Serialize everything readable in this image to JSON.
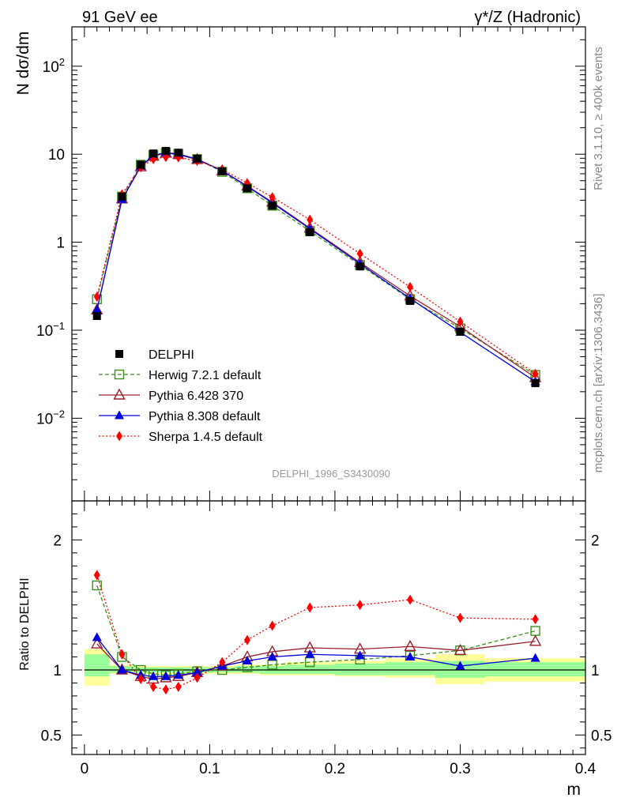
{
  "header": {
    "left_title": "91 GeV ee",
    "right_title": "γ*/Z (Hadronic)"
  },
  "side_labels": {
    "rivet": "Rivet 3.1.10, ≥ 400k events",
    "mcplots": "mcplots.cern.ch [arXiv:1306.3436]"
  },
  "analysis_id": "DELPHI_1996_S3430090",
  "colors": {
    "data": "#000000",
    "herwig": "#3a8f1a",
    "pythia6": "#9a1f2b",
    "pythia8": "#0000dd",
    "sherpa": "#ff0000",
    "band_inner": "#99ff99",
    "band_outer": "#ffff99"
  },
  "chart_data": [
    {
      "type": "line",
      "panel": "main",
      "ylabel": "N dσ/dm",
      "yscale": "log",
      "ylim": [
        0.00115,
        280
      ],
      "xlim": [
        -0.01,
        0.4
      ],
      "y_ticks": [
        {
          "value": 100,
          "base": "10",
          "exp": "2"
        },
        {
          "value": 10,
          "label": "10"
        },
        {
          "value": 1,
          "label": "1"
        },
        {
          "value": 0.1,
          "base": "10",
          "exp": "−1"
        },
        {
          "value": 0.01,
          "base": "10",
          "exp": "−2"
        }
      ],
      "x": [
        0.01,
        0.03,
        0.045,
        0.055,
        0.065,
        0.075,
        0.09,
        0.11,
        0.13,
        0.15,
        0.18,
        0.22,
        0.26,
        0.3,
        0.36
      ],
      "legend_position": "lower-left",
      "series": [
        {
          "name": "DELPHI",
          "key": "data",
          "values": [
            0.145,
            3.3,
            7.6,
            10.2,
            10.9,
            10.4,
            8.9,
            6.4,
            4.1,
            2.6,
            1.3,
            0.53,
            0.215,
            0.096,
            0.025
          ]
        },
        {
          "name": "Herwig 7.2.1 default",
          "key": "herwig",
          "values": [
            0.225,
            3.3,
            7.6,
            9.8,
            10.4,
            10.1,
            8.8,
            6.3,
            4.1,
            2.6,
            1.34,
            0.55,
            0.225,
            0.105,
            0.031
          ]
        },
        {
          "name": "Pythia 6.428 370",
          "key": "pythia6",
          "values": [
            0.17,
            3.1,
            7.2,
            9.5,
            10.3,
            9.9,
            8.7,
            6.5,
            4.35,
            2.85,
            1.45,
            0.59,
            0.245,
            0.11,
            0.029
          ]
        },
        {
          "name": "Pythia 8.308 default",
          "key": "pythia8",
          "values": [
            0.17,
            3.05,
            7.3,
            9.7,
            10.4,
            10.0,
            8.8,
            6.5,
            4.3,
            2.8,
            1.42,
            0.57,
            0.23,
            0.095,
            0.026
          ]
        },
        {
          "name": "Sherpa 1.4.5 default",
          "key": "sherpa",
          "values": [
            0.24,
            3.5,
            7.1,
            8.8,
            9.3,
            9.2,
            8.4,
            6.7,
            4.7,
            3.25,
            1.8,
            0.74,
            0.31,
            0.125,
            0.032
          ]
        }
      ]
    },
    {
      "type": "line",
      "panel": "ratio",
      "ylabel": "Ratio to DELPHI",
      "xlabel": "m",
      "ylim": [
        0.35,
        2.3
      ],
      "xlim": [
        -0.01,
        0.4
      ],
      "y_ticks": [
        {
          "value": 0.5,
          "label": "0.5"
        },
        {
          "value": 1,
          "label": "1"
        },
        {
          "value": 2,
          "label": "2"
        }
      ],
      "x_ticks": [
        {
          "value": 0,
          "label": "0"
        },
        {
          "value": 0.1,
          "label": "0.1"
        },
        {
          "value": 0.2,
          "label": "0.2"
        },
        {
          "value": 0.3,
          "label": "0.3"
        },
        {
          "value": 0.4,
          "label": "0.4"
        }
      ],
      "x": [
        0.01,
        0.03,
        0.045,
        0.055,
        0.065,
        0.075,
        0.09,
        0.11,
        0.13,
        0.15,
        0.18,
        0.22,
        0.26,
        0.3,
        0.36
      ],
      "bins": [
        [
          0,
          0.02
        ],
        [
          0.02,
          0.04
        ],
        [
          0.04,
          0.05
        ],
        [
          0.05,
          0.06
        ],
        [
          0.06,
          0.07
        ],
        [
          0.07,
          0.08
        ],
        [
          0.08,
          0.1
        ],
        [
          0.1,
          0.12
        ],
        [
          0.12,
          0.14
        ],
        [
          0.14,
          0.16
        ],
        [
          0.16,
          0.2
        ],
        [
          0.2,
          0.24
        ],
        [
          0.24,
          0.28
        ],
        [
          0.28,
          0.32
        ],
        [
          0.32,
          0.4
        ]
      ],
      "band_inner": [
        [
          0.95,
          1.12
        ],
        [
          0.98,
          1.03
        ],
        [
          0.98,
          1.02
        ],
        [
          0.98,
          1.02
        ],
        [
          0.98,
          1.02
        ],
        [
          0.98,
          1.02
        ],
        [
          0.98,
          1.02
        ],
        [
          0.98,
          1.02
        ],
        [
          0.98,
          1.03
        ],
        [
          0.97,
          1.03
        ],
        [
          0.97,
          1.04
        ],
        [
          0.96,
          1.05
        ],
        [
          0.96,
          1.06
        ],
        [
          0.94,
          1.07
        ],
        [
          0.95,
          1.06
        ]
      ],
      "band_outer": [
        [
          0.88,
          1.16
        ],
        [
          0.97,
          1.04
        ],
        [
          0.97,
          1.03
        ],
        [
          0.97,
          1.03
        ],
        [
          0.97,
          1.03
        ],
        [
          0.97,
          1.03
        ],
        [
          0.97,
          1.03
        ],
        [
          0.97,
          1.03
        ],
        [
          0.97,
          1.04
        ],
        [
          0.96,
          1.04
        ],
        [
          0.96,
          1.06
        ],
        [
          0.95,
          1.07
        ],
        [
          0.94,
          1.09
        ],
        [
          0.89,
          1.12
        ],
        [
          0.91,
          1.09
        ]
      ],
      "series": [
        {
          "name": "Herwig 7.2.1 default",
          "key": "herwig",
          "values": [
            1.65,
            1.1,
            1.0,
            0.97,
            0.96,
            0.97,
            0.99,
            1.0,
            1.02,
            1.04,
            1.06,
            1.08,
            1.11,
            1.15,
            1.3
          ]
        },
        {
          "name": "Pythia 6.428 370",
          "key": "pythia6",
          "values": [
            1.2,
            1.0,
            0.95,
            0.93,
            0.94,
            0.95,
            0.98,
            1.03,
            1.1,
            1.14,
            1.17,
            1.16,
            1.18,
            1.15,
            1.22
          ]
        },
        {
          "name": "Pythia 8.308 default",
          "key": "pythia8",
          "values": [
            1.25,
            1.0,
            0.96,
            0.95,
            0.95,
            0.96,
            0.98,
            1.03,
            1.07,
            1.1,
            1.12,
            1.11,
            1.1,
            1.03,
            1.09
          ]
        },
        {
          "name": "Sherpa 1.4.5 default",
          "key": "sherpa",
          "values": [
            1.73,
            1.12,
            0.93,
            0.87,
            0.85,
            0.87,
            0.94,
            1.06,
            1.23,
            1.34,
            1.48,
            1.5,
            1.54,
            1.4,
            1.39
          ]
        }
      ]
    }
  ]
}
